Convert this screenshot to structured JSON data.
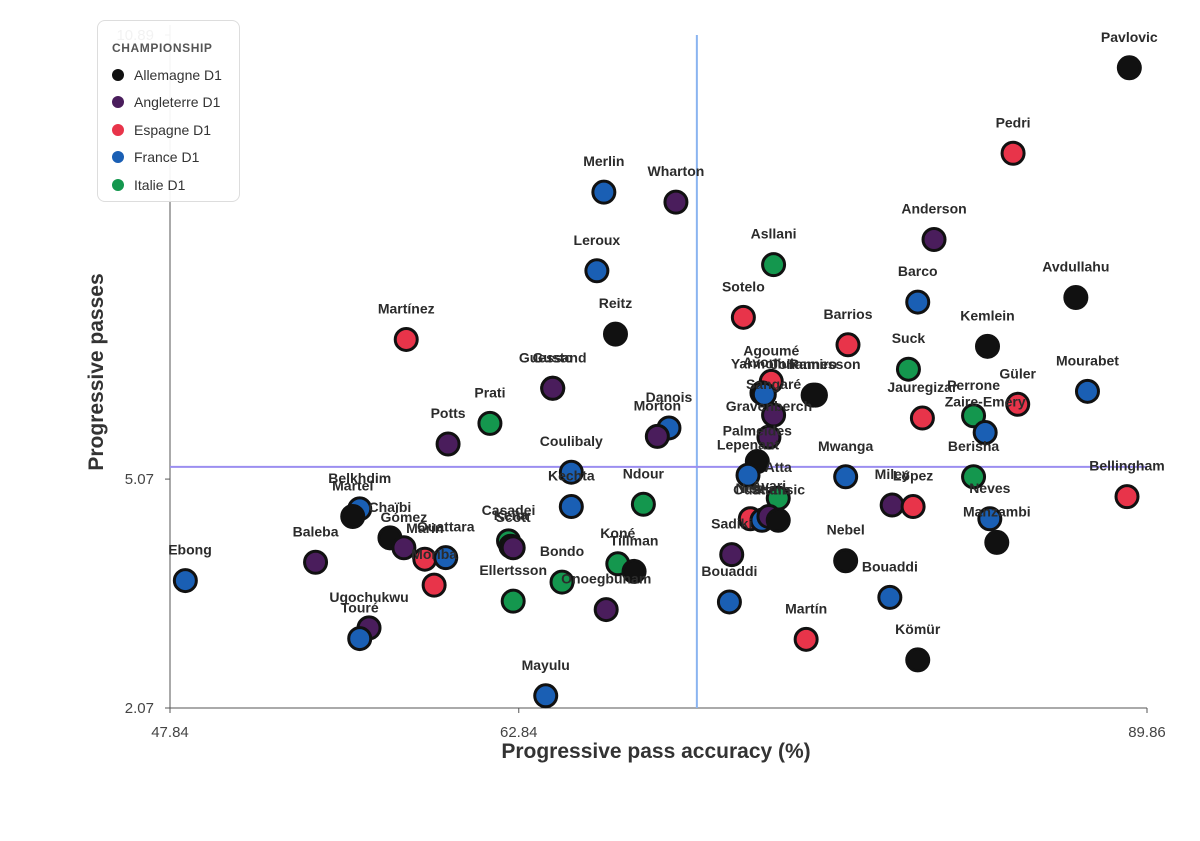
{
  "chart_data": {
    "type": "scatter",
    "title": "",
    "xlabel": "Progressive pass accuracy (%)",
    "ylabel": "Progressive passes",
    "xlim": [
      47.84,
      89.86
    ],
    "ylim": [
      2.07,
      10.89
    ],
    "x_ticks": [
      "47.84",
      "62.84",
      "89.86"
    ],
    "y_ticks": [
      "2.07",
      "5.07",
      "10.89"
    ],
    "reference_lines": {
      "x": 70.5,
      "y": 5.23
    },
    "reference_color": "#9b8ef0",
    "reference_color_v": "#8ab4f0",
    "legend": {
      "title": "CHAMPIONSHIP",
      "items": [
        {
          "label": "Allemagne D1",
          "color": "#111111"
        },
        {
          "label": "Angleterre D1",
          "color": "#4a1d5c"
        },
        {
          "label": "Espagne D1",
          "color": "#e8344a"
        },
        {
          "label": "France D1",
          "color": "#1a5fb4"
        },
        {
          "label": "Italie D1",
          "color": "#14974e"
        }
      ]
    },
    "points": [
      {
        "name": "Pavlovic",
        "x": 89.1,
        "y": 10.46,
        "league": "Allemagne D1"
      },
      {
        "name": "Pedri",
        "x": 84.1,
        "y": 9.34,
        "league": "Espagne D1"
      },
      {
        "name": "Merlin",
        "x": 66.5,
        "y": 8.83,
        "league": "France D1"
      },
      {
        "name": "Wharton",
        "x": 69.6,
        "y": 8.7,
        "league": "Angleterre D1"
      },
      {
        "name": "Anderson",
        "x": 80.7,
        "y": 8.21,
        "league": "Angleterre D1"
      },
      {
        "name": "Asllani",
        "x": 73.8,
        "y": 7.88,
        "league": "Italie D1"
      },
      {
        "name": "Leroux",
        "x": 66.2,
        "y": 7.8,
        "league": "France D1"
      },
      {
        "name": "Avdullahu",
        "x": 86.8,
        "y": 7.45,
        "league": "Allemagne D1"
      },
      {
        "name": "Barco",
        "x": 80.0,
        "y": 7.39,
        "league": "France D1"
      },
      {
        "name": "Sotelo",
        "x": 72.5,
        "y": 7.19,
        "league": "Espagne D1"
      },
      {
        "name": "Reitz",
        "x": 67.0,
        "y": 6.97,
        "league": "Allemagne D1"
      },
      {
        "name": "Martínez",
        "x": 58.0,
        "y": 6.9,
        "league": "Espagne D1"
      },
      {
        "name": "Barrios",
        "x": 77.0,
        "y": 6.83,
        "league": "Espagne D1"
      },
      {
        "name": "Kemlein",
        "x": 83.0,
        "y": 6.81,
        "league": "Allemagne D1"
      },
      {
        "name": "Suck",
        "x": 79.6,
        "y": 6.51,
        "league": "Italie D1"
      },
      {
        "name": "Agoumé",
        "x": 73.7,
        "y": 6.35,
        "league": "Espagne D1"
      },
      {
        "name": "Gusto",
        "x": 64.3,
        "y": 6.26,
        "league": "Angleterre D1"
      },
      {
        "name": "Guessand",
        "x": 64.3,
        "y": 6.26,
        "league": "Angleterre D1"
      },
      {
        "name": "Mourabet",
        "x": 87.3,
        "y": 6.22,
        "league": "France D1"
      },
      {
        "name": "Johannesson",
        "x": 75.6,
        "y": 6.17,
        "league": "Allemagne D1"
      },
      {
        "name": "Avom",
        "x": 73.3,
        "y": 6.2,
        "league": "France D1"
      },
      {
        "name": "Yarmoliuk",
        "x": 73.4,
        "y": 6.18,
        "league": "France D1"
      },
      {
        "name": "Ramiro",
        "x": 75.5,
        "y": 6.17,
        "league": "Allemagne D1"
      },
      {
        "name": "Güler",
        "x": 84.3,
        "y": 6.05,
        "league": "Espagne D1"
      },
      {
        "name": "Perrone",
        "x": 82.4,
        "y": 5.9,
        "league": "Italie D1"
      },
      {
        "name": "Sangaré",
        "x": 73.8,
        "y": 5.91,
        "league": "Angleterre D1"
      },
      {
        "name": "Jauregizar",
        "x": 80.2,
        "y": 5.87,
        "league": "Espagne D1"
      },
      {
        "name": "Zaire-Emery",
        "x": 82.9,
        "y": 5.68,
        "league": "France D1"
      },
      {
        "name": "Danois",
        "x": 69.3,
        "y": 5.74,
        "league": "France D1"
      },
      {
        "name": "Morton",
        "x": 68.8,
        "y": 5.63,
        "league": "Angleterre D1"
      },
      {
        "name": "Prati",
        "x": 61.6,
        "y": 5.8,
        "league": "Italie D1"
      },
      {
        "name": "Potts",
        "x": 59.8,
        "y": 5.53,
        "league": "Angleterre D1"
      },
      {
        "name": "Gravenberch",
        "x": 73.6,
        "y": 5.62,
        "league": "Angleterre D1"
      },
      {
        "name": "Coulibaly",
        "x": 65.1,
        "y": 5.16,
        "league": "France D1"
      },
      {
        "name": "Palmeides",
        "x": 73.1,
        "y": 5.3,
        "league": "Allemagne D1"
      },
      {
        "name": "Lepenant",
        "x": 72.7,
        "y": 5.12,
        "league": "France D1"
      },
      {
        "name": "Mwanga",
        "x": 76.9,
        "y": 5.1,
        "league": "France D1"
      },
      {
        "name": "Berisha",
        "x": 82.4,
        "y": 5.1,
        "league": "Italie D1"
      },
      {
        "name": "Bellingham",
        "x": 89.0,
        "y": 4.84,
        "league": "Espagne D1"
      },
      {
        "name": "Atta",
        "x": 74.0,
        "y": 4.82,
        "league": "Italie D1"
      },
      {
        "name": "Kechta",
        "x": 65.1,
        "y": 4.71,
        "league": "France D1"
      },
      {
        "name": "Ndour",
        "x": 68.2,
        "y": 4.74,
        "league": "Italie D1"
      },
      {
        "name": "Miley",
        "x": 78.9,
        "y": 4.73,
        "league": "Angleterre D1"
      },
      {
        "name": "López",
        "x": 79.8,
        "y": 4.71,
        "league": "Espagne D1"
      },
      {
        "name": "Neves",
        "x": 83.1,
        "y": 4.55,
        "league": "France D1"
      },
      {
        "name": "Netz",
        "x": 72.8,
        "y": 4.55,
        "league": "Espagne D1"
      },
      {
        "name": "Ouattara",
        "x": 73.3,
        "y": 4.53,
        "league": "France D1"
      },
      {
        "name": "Avari",
        "x": 73.6,
        "y": 4.58,
        "league": "Angleterre D1"
      },
      {
        "name": "Stanisic",
        "x": 74.0,
        "y": 4.53,
        "league": "Allemagne D1"
      },
      {
        "name": "Belkhdim",
        "x": 56.0,
        "y": 4.68,
        "league": "France D1"
      },
      {
        "name": "Martel",
        "x": 55.7,
        "y": 4.58,
        "league": "Allemagne D1"
      },
      {
        "name": "Chaïbi",
        "x": 57.3,
        "y": 4.3,
        "league": "Allemagne D1"
      },
      {
        "name": "Manzambi",
        "x": 83.4,
        "y": 4.24,
        "league": "Allemagne D1"
      },
      {
        "name": "Sadiki",
        "x": 72.0,
        "y": 4.08,
        "league": "Angleterre D1"
      },
      {
        "name": "Casadei",
        "x": 62.4,
        "y": 4.26,
        "league": "Italie D1"
      },
      {
        "name": "Keïta",
        "x": 62.5,
        "y": 4.19,
        "league": "Angleterre D1"
      },
      {
        "name": "Scott",
        "x": 62.6,
        "y": 4.17,
        "league": "Angleterre D1"
      },
      {
        "name": "Gómez",
        "x": 57.9,
        "y": 4.17,
        "league": "Angleterre D1"
      },
      {
        "name": "Marin",
        "x": 58.8,
        "y": 4.02,
        "league": "Espagne D1"
      },
      {
        "name": "Baleba",
        "x": 54.1,
        "y": 3.98,
        "league": "Angleterre D1"
      },
      {
        "name": "Nebel",
        "x": 76.9,
        "y": 4.0,
        "league": "Allemagne D1"
      },
      {
        "name": "Moriba",
        "x": 59.2,
        "y": 3.68,
        "league": "Espagne D1"
      },
      {
        "name": "Ouattara",
        "x": 59.7,
        "y": 4.04,
        "league": "France D1"
      },
      {
        "name": "Ebong",
        "x": 48.5,
        "y": 3.74,
        "league": "France D1"
      },
      {
        "name": "Koné",
        "x": 67.1,
        "y": 3.96,
        "league": "Italie D1"
      },
      {
        "name": "Tillman",
        "x": 67.8,
        "y": 3.86,
        "league": "Allemagne D1"
      },
      {
        "name": "Bondo",
        "x": 64.7,
        "y": 3.72,
        "league": "Italie D1"
      },
      {
        "name": "Ellertsson",
        "x": 62.6,
        "y": 3.47,
        "league": "Italie D1"
      },
      {
        "name": "Onoegbunam",
        "x": 66.6,
        "y": 3.36,
        "league": "Angleterre D1"
      },
      {
        "name": "Bouaddi",
        "x": 71.9,
        "y": 3.46,
        "league": "France D1"
      },
      {
        "name": "Bouaddi",
        "x": 78.8,
        "y": 3.52,
        "league": "France D1"
      },
      {
        "name": "Ugochukwu",
        "x": 56.4,
        "y": 3.12,
        "league": "Angleterre D1"
      },
      {
        "name": "Touré",
        "x": 56.0,
        "y": 2.98,
        "league": "France D1"
      },
      {
        "name": "Martín",
        "x": 75.2,
        "y": 2.97,
        "league": "Espagne D1"
      },
      {
        "name": "Kömür",
        "x": 80.0,
        "y": 2.7,
        "league": "Allemagne D1"
      },
      {
        "name": "Mayulu",
        "x": 64.0,
        "y": 2.23,
        "league": "France D1"
      }
    ]
  }
}
